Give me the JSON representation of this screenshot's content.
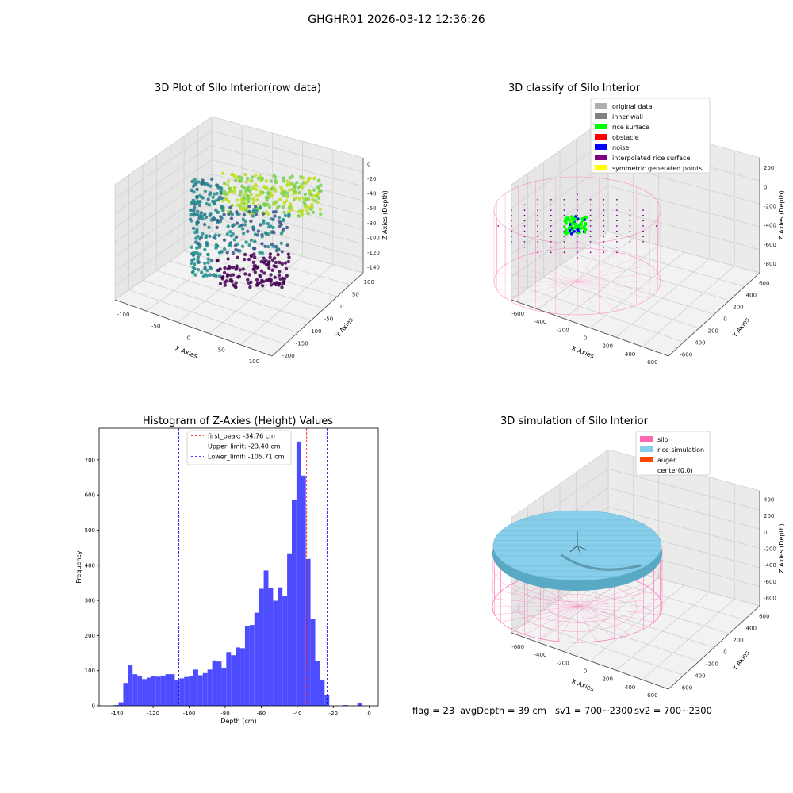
{
  "suptitle": "GHGHR01 2026-03-12 12:36:26",
  "status": {
    "flag": "flag = 23",
    "avg_depth": "avgDepth = 39 cm",
    "sv1": "sv1 = 700~2300",
    "sv2": "sv2 = 700~2300"
  },
  "chart_data": [
    {
      "type": "scatter",
      "title": "3D Plot of Silo Interior(row data)",
      "xlabel": "X Axies",
      "ylabel": "Y Axies",
      "zlabel": "Z Axies (Depth)",
      "x_ticks": [
        "-100",
        "-50",
        "0",
        "50",
        "100"
      ],
      "y_ticks": [
        "-200",
        "-150",
        "-100",
        "-50",
        "0",
        "50",
        "100"
      ],
      "z_ticks": [
        "-140",
        "-120",
        "-100",
        "-80",
        "-60",
        "-40",
        "-20",
        "0"
      ],
      "xlim": [
        -130,
        110
      ],
      "ylim": [
        -210,
        120
      ],
      "zlim": [
        -145,
        5
      ],
      "colormap": "viridis",
      "colors": {
        "low": "#440154",
        "mid": "#21918c",
        "high": "#bddf26"
      }
    },
    {
      "type": "scatter",
      "title": "3D classify of Silo Interior",
      "xlabel": "X Axies",
      "ylabel": "Y Axies",
      "zlabel": "Z Axies (Depth)",
      "x_ticks": [
        "-600",
        "-400",
        "-200",
        "0",
        "200",
        "400",
        "600"
      ],
      "y_ticks": [
        "-600",
        "-400",
        "-200",
        "0",
        "200",
        "400",
        "600"
      ],
      "z_ticks": [
        "-800",
        "-600",
        "-400",
        "-200",
        "0",
        "200"
      ],
      "legend_position": "top-right",
      "legend": [
        {
          "label": "original data",
          "color": "#b0b0b0"
        },
        {
          "label": "inner wall",
          "color": "#808080"
        },
        {
          "label": "rice surface",
          "color": "#00ff00"
        },
        {
          "label": "obstacle",
          "color": "#ff0000"
        },
        {
          "label": "noise",
          "color": "#0000ff"
        },
        {
          "label": "interpolated rice surface",
          "color": "#800080"
        },
        {
          "label": "symmetric generated points",
          "color": "#ffff00"
        }
      ]
    },
    {
      "type": "bar",
      "title": "Histogram of Z-Axies (Height) Values",
      "xlabel": "Depth (cm)",
      "ylabel": "Frequency",
      "xlim": [
        -150,
        5
      ],
      "ylim": [
        0,
        790
      ],
      "x_ticks": [
        -140,
        -120,
        -100,
        -80,
        -60,
        -40,
        -20,
        0
      ],
      "y_ticks": [
        0,
        100,
        200,
        300,
        400,
        500,
        600,
        700
      ],
      "bin_width": 2.6,
      "bins_start": [
        -141.8,
        -139.2,
        -136.6,
        -134.0,
        -131.4,
        -128.8,
        -126.2,
        -123.6,
        -121.0,
        -118.4,
        -115.8,
        -113.2,
        -110.6,
        -108.0,
        -105.4,
        -102.8,
        -100.2,
        -97.6,
        -95.0,
        -92.4,
        -89.8,
        -87.2,
        -84.6,
        -82.0,
        -79.4,
        -76.8,
        -74.2,
        -71.6,
        -69.0,
        -66.4,
        -63.8,
        -61.2,
        -58.6,
        -56.0,
        -53.4,
        -50.8,
        -48.2,
        -45.6,
        -43.0,
        -40.4,
        -37.8,
        -35.2,
        -32.6,
        -30.0,
        -27.4,
        -24.8,
        -22.2,
        -19.6,
        -17.0,
        -14.4,
        -11.8,
        -9.2,
        -6.6,
        -4.0,
        -1.4
      ],
      "values": [
        2,
        10,
        65,
        115,
        90,
        86,
        76,
        80,
        85,
        83,
        86,
        90,
        90,
        74,
        78,
        82,
        85,
        103,
        87,
        93,
        103,
        129,
        126,
        108,
        153,
        144,
        166,
        164,
        228,
        230,
        265,
        333,
        385,
        336,
        299,
        337,
        313,
        434,
        585,
        752,
        655,
        418,
        246,
        127,
        73,
        30,
        0,
        0,
        0,
        2,
        0,
        0,
        7,
        0,
        0
      ],
      "bar_color": "#4d4dff",
      "legend_position": "top-center",
      "vlines": [
        {
          "label": "first_peak: -34.76 cm",
          "x": -34.76,
          "color": "#ff0000"
        },
        {
          "label": "Upper_limit: -23.40 cm",
          "x": -23.4,
          "color": "#0000ff"
        },
        {
          "label": "Lower_limit: -105.71 cm",
          "x": -105.71,
          "color": "#0000ff"
        }
      ]
    },
    {
      "type": "surface",
      "title": "3D simulation of Silo Interior",
      "xlabel": "X Axies",
      "ylabel": "Y Axies",
      "zlabel": "Z Axies (Depth)",
      "x_ticks": [
        "-600",
        "-400",
        "-200",
        "0",
        "200",
        "400",
        "600"
      ],
      "y_ticks": [
        "-600",
        "-400",
        "-200",
        "0",
        "200",
        "400",
        "600"
      ],
      "z_ticks": [
        "-800",
        "-600",
        "-400",
        "-200",
        "0",
        "200",
        "400"
      ],
      "legend_position": "top-right",
      "legend": [
        {
          "label": "silo",
          "color": "#ff69b4"
        },
        {
          "label": "rice simulation",
          "color": "#87ceeb"
        },
        {
          "label": "auger",
          "color": "#ff4500"
        },
        {
          "label": "center(0,0)",
          "color": ""
        }
      ]
    }
  ]
}
